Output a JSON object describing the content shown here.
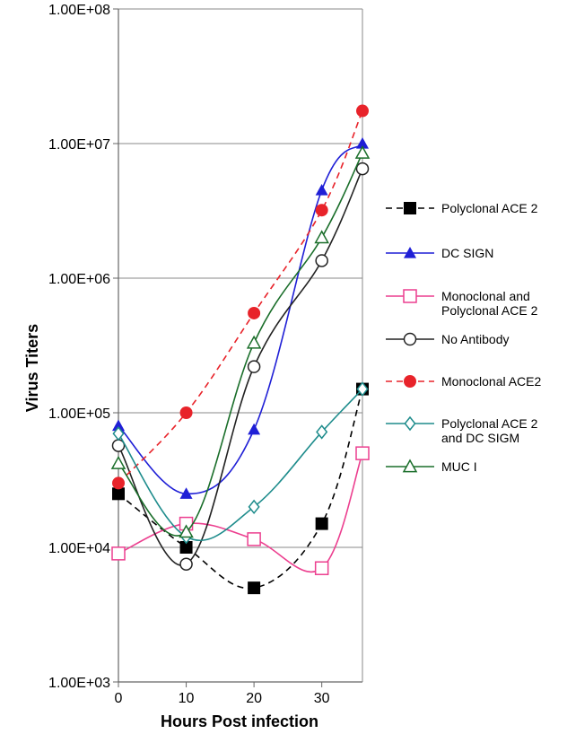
{
  "chart_data": {
    "type": "line",
    "xlabel": "Hours Post infection",
    "ylabel": "Virus Titers",
    "y_scale": "log",
    "ylim": [
      1000,
      100000000
    ],
    "xlim": [
      0,
      36
    ],
    "x_ticks": [
      "0",
      "10",
      "20",
      "30"
    ],
    "y_ticks": [
      "1.00E+03",
      "1.00E+04",
      "1.00E+05",
      "1.00E+06",
      "1.00E+07",
      "1.00E+08"
    ],
    "grid": "horizontal",
    "legend_position": "right",
    "x": [
      0,
      10,
      20,
      30,
      36
    ],
    "series": [
      {
        "name": "Polyclonal ACE 2",
        "values": [
          25000,
          10000,
          5000,
          15000,
          150000
        ],
        "color": "#000000",
        "marker": "square-filled",
        "dash": true
      },
      {
        "name": "DC SIGN",
        "values": [
          80000,
          25000,
          75000,
          4500000,
          10000000
        ],
        "color": "#1f1fd6",
        "marker": "triangle-filled",
        "dash": false
      },
      {
        "name": "Monoclonal and Polyclonal ACE 2",
        "values": [
          9000,
          15000,
          11500,
          7000,
          50000
        ],
        "color": "#ec3f8f",
        "marker": "square-open",
        "dash": false
      },
      {
        "name": "No Antibody",
        "values": [
          57000,
          7500,
          220000,
          1350000,
          6500000
        ],
        "color": "#222222",
        "marker": "circle-open",
        "dash": false
      },
      {
        "name": "Monoclonal ACE2",
        "values": [
          30000,
          100000,
          550000,
          3200000,
          17500000
        ],
        "color": "#e8232a",
        "marker": "circle-filled",
        "dash": true
      },
      {
        "name": "Polyclonal ACE 2 and DC SIGM",
        "values": [
          70000,
          12000,
          20000,
          72000,
          150000
        ],
        "color": "#1e8c8c",
        "marker": "diamond-open",
        "dash": false
      },
      {
        "name": "MUC I",
        "values": [
          42000,
          13000,
          330000,
          2000000,
          8500000
        ],
        "color": "#1a6e2a",
        "marker": "triangle-open",
        "dash": false
      }
    ],
    "legend": [
      {
        "label_lines": [
          "Polyclonal ACE 2"
        ]
      },
      {
        "label_lines": [
          "DC SIGN"
        ]
      },
      {
        "label_lines": [
          "Monoclonal and",
          "Polyclonal ACE 2"
        ]
      },
      {
        "label_lines": [
          "No Antibody"
        ]
      },
      {
        "label_lines": [
          "Monoclonal ACE2"
        ]
      },
      {
        "label_lines": [
          "Polyclonal ACE 2",
          "and DC SIGM"
        ]
      },
      {
        "label_lines": [
          "MUC I"
        ]
      }
    ]
  }
}
